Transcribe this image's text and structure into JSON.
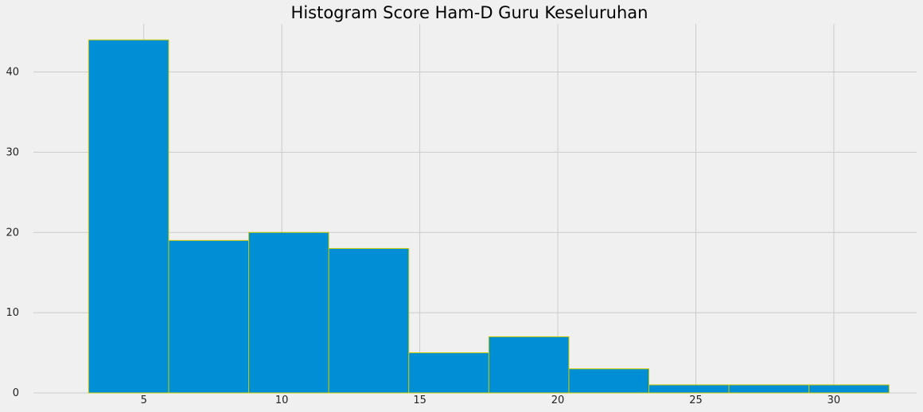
{
  "chart_data": {
    "type": "bar",
    "title": "Histogram Score Ham-D Guru Keseluruhan",
    "xlabel": "",
    "ylabel": "",
    "bin_edges": [
      3,
      5.9,
      8.8,
      11.7,
      14.6,
      17.5,
      20.4,
      23.3,
      26.2,
      29.1,
      32
    ],
    "values": [
      44,
      19,
      20,
      18,
      5,
      7,
      3,
      1,
      1,
      1
    ],
    "xlim": [
      1,
      33
    ],
    "ylim": [
      0,
      46
    ],
    "xticks": [
      5,
      10,
      15,
      20,
      25,
      30
    ],
    "yticks": [
      0,
      10,
      20,
      30,
      40
    ],
    "grid": true,
    "colors": {
      "bar": "#008fd5",
      "edge": "#c8c800",
      "grid": "#cbcbcb",
      "background": "#f0f0f0"
    }
  }
}
